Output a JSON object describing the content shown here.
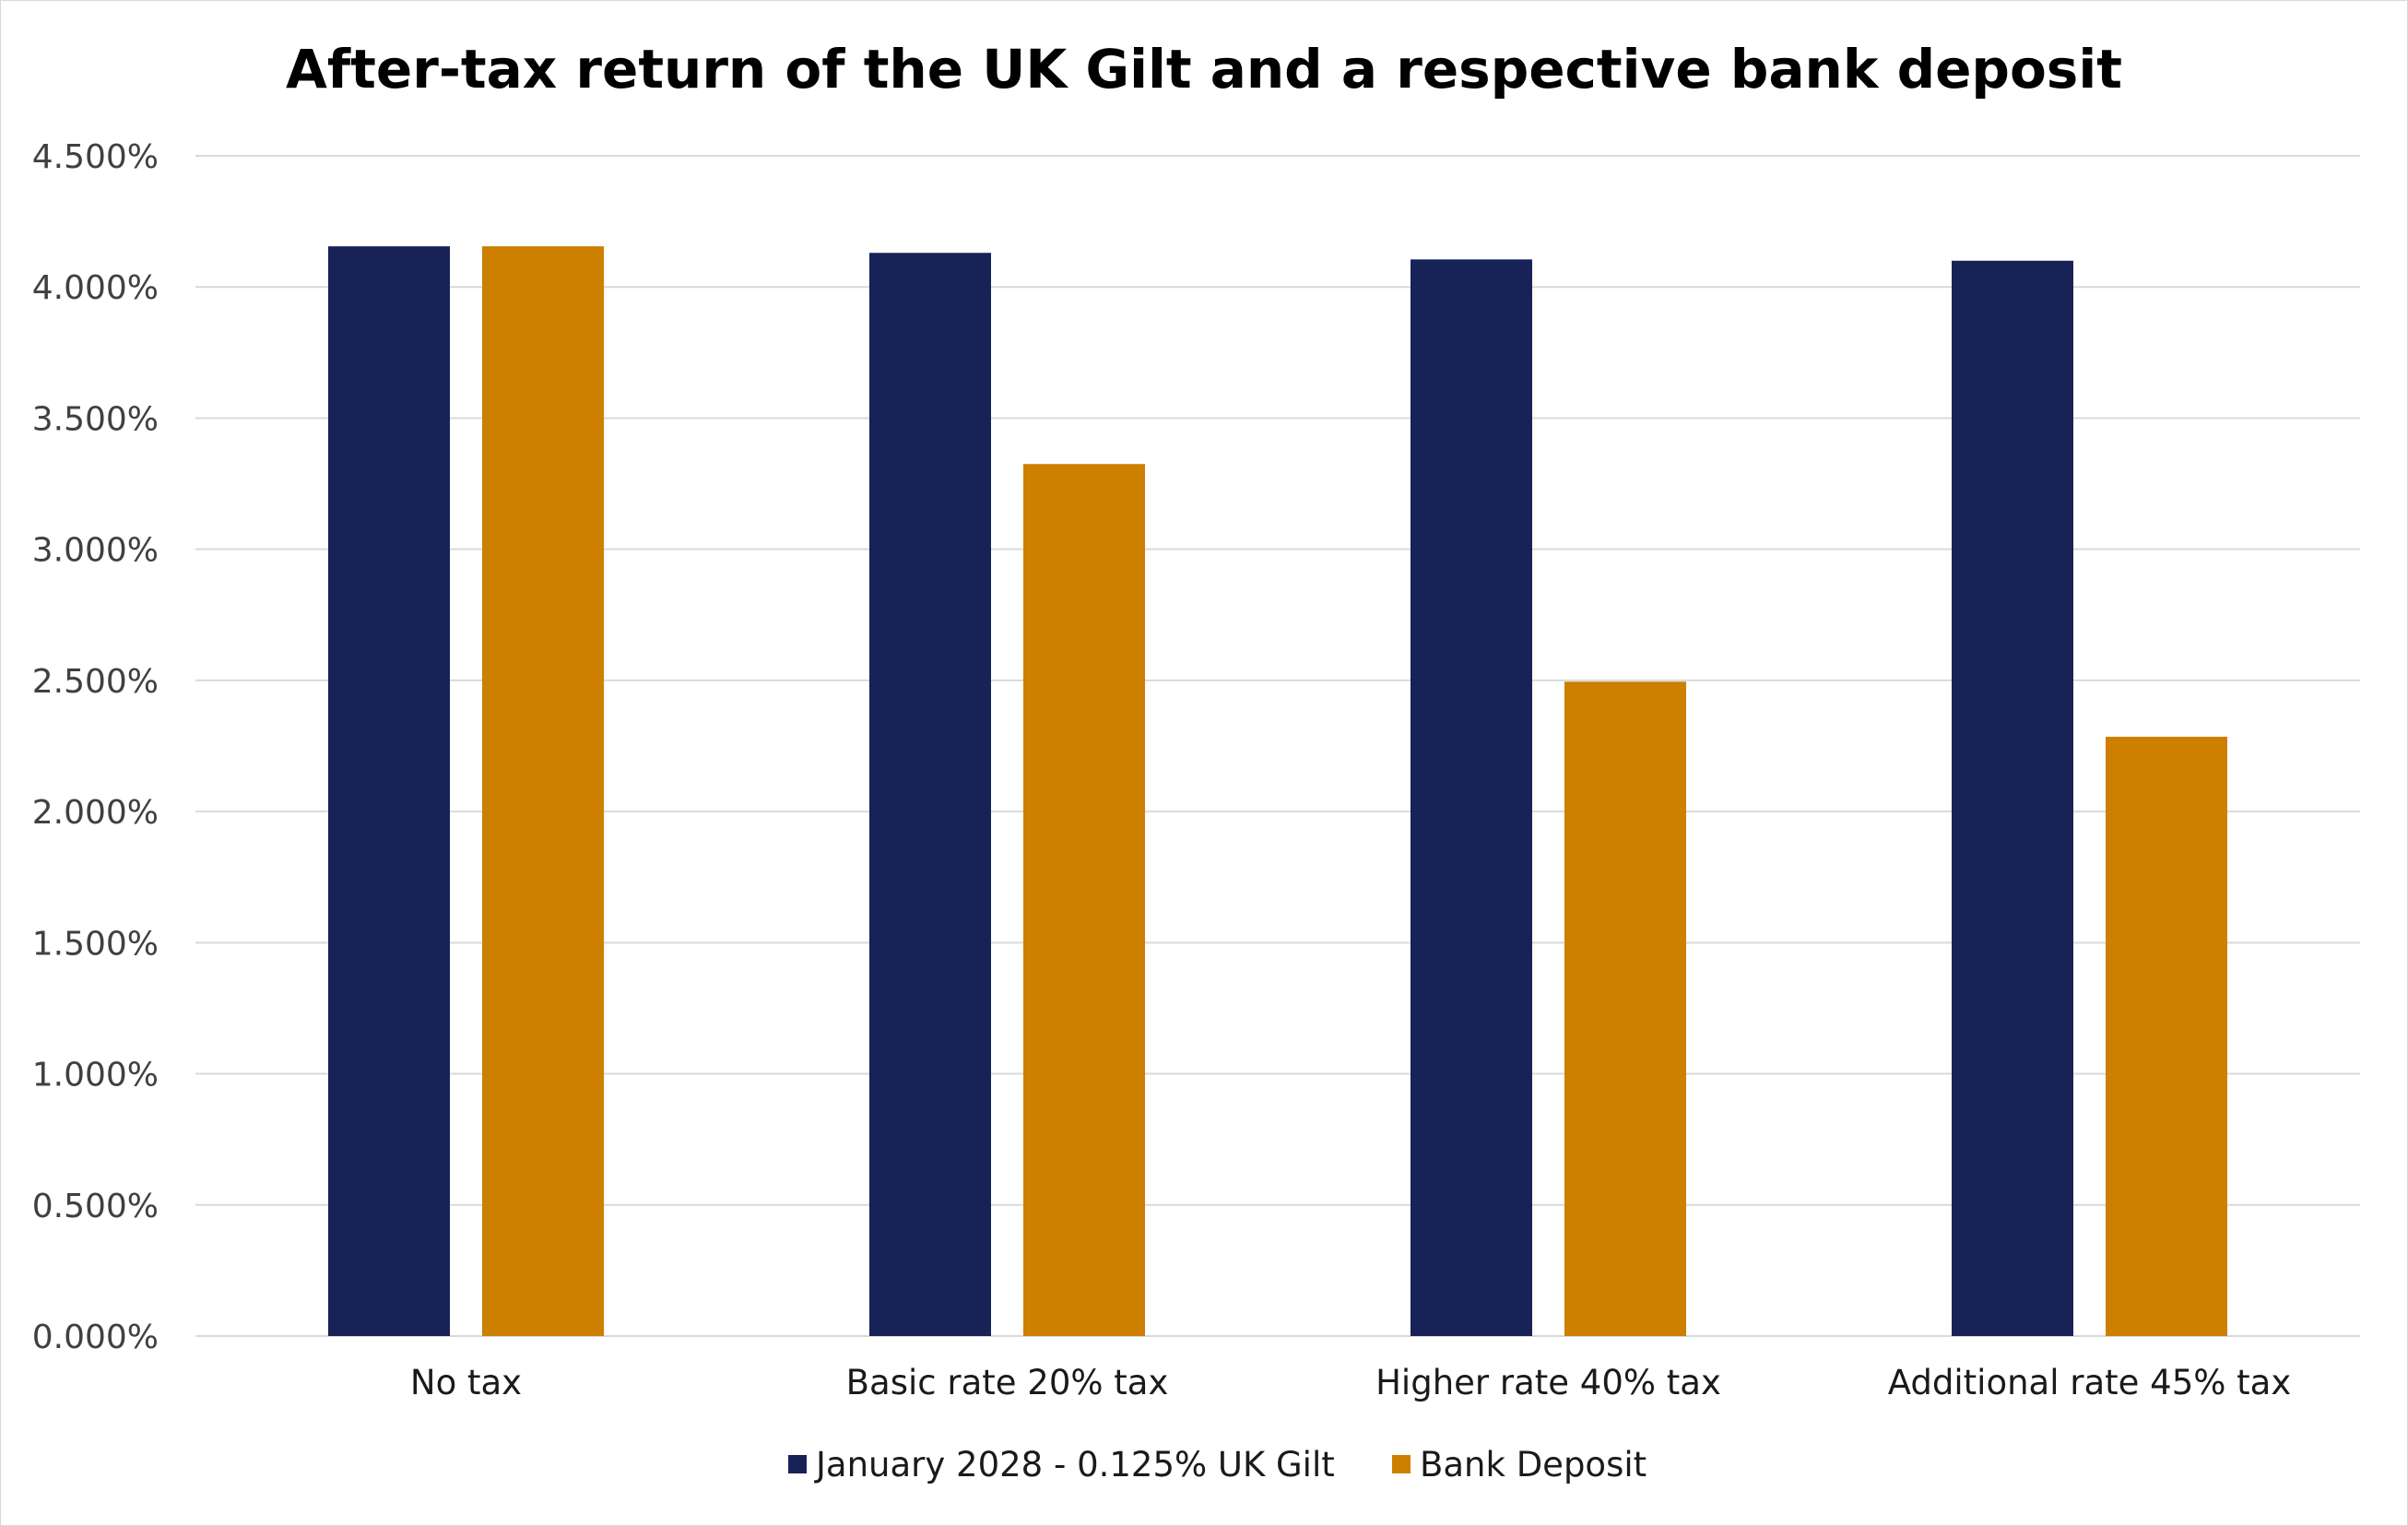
{
  "chart_data": {
    "type": "bar",
    "title": "After-tax return of the UK Gilt and a respective bank deposit",
    "categories": [
      "No tax",
      "Basic rate 20% tax",
      "Higher rate 40% tax",
      "Additional rate 45% tax"
    ],
    "series": [
      {
        "name": "January 2028 - 0.125% UK Gilt",
        "values": [
          4.155,
          4.13,
          4.105,
          4.1
        ],
        "color": "#172257"
      },
      {
        "name": "Bank Deposit",
        "values": [
          4.155,
          3.325,
          2.495,
          2.285
        ],
        "color": "#cd7f00"
      }
    ],
    "ylim": [
      0,
      4.5
    ],
    "yticks": [
      "0.000%",
      "0.500%",
      "1.000%",
      "1.500%",
      "2.000%",
      "2.500%",
      "3.000%",
      "3.500%",
      "4.000%",
      "4.500%"
    ],
    "ytick_values": [
      0,
      0.5,
      1.0,
      1.5,
      2.0,
      2.5,
      3.0,
      3.5,
      4.0,
      4.5
    ],
    "grid": true,
    "legend": "bottom"
  }
}
